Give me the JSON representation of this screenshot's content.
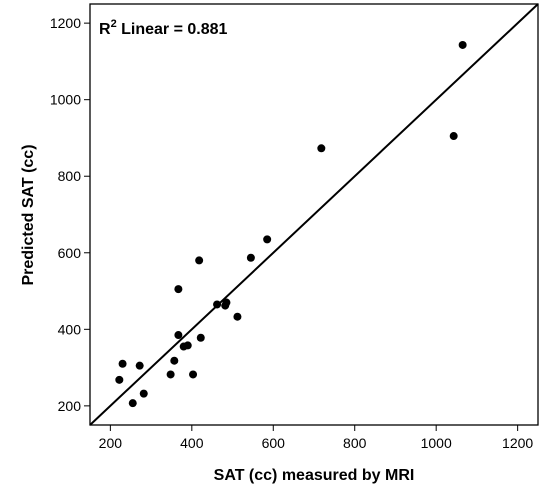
{
  "chart_data": {
    "type": "scatter",
    "title": "",
    "xlabel": "SAT (cc) measured by MRI",
    "ylabel": "Predicted SAT (cc)",
    "xlim": [
      150,
      1250
    ],
    "ylim": [
      150,
      1250
    ],
    "x_ticks": [
      "200",
      "400",
      "600",
      "800",
      "1000",
      "1200"
    ],
    "y_ticks": [
      "200",
      "400",
      "600",
      "800",
      "1000",
      "1200"
    ],
    "grid": false,
    "annotation": {
      "r_symbol": "R",
      "superscript": "2",
      "text": " Linear = 0.881"
    },
    "reference_line": {
      "from": [
        150,
        150
      ],
      "to": [
        1250,
        1250
      ]
    },
    "marker_color": "#000000",
    "points": [
      [
        1065,
        1143
      ],
      [
        1043,
        905
      ],
      [
        718,
        873
      ],
      [
        585,
        635
      ],
      [
        545,
        587
      ],
      [
        418,
        580
      ],
      [
        367,
        505
      ],
      [
        462,
        465
      ],
      [
        485,
        470
      ],
      [
        482,
        462
      ],
      [
        512,
        433
      ],
      [
        367,
        385
      ],
      [
        422,
        378
      ],
      [
        390,
        358
      ],
      [
        380,
        355
      ],
      [
        357,
        318
      ],
      [
        230,
        310
      ],
      [
        272,
        305
      ],
      [
        348,
        282
      ],
      [
        403,
        282
      ],
      [
        222,
        268
      ],
      [
        282,
        232
      ],
      [
        255,
        207
      ]
    ]
  }
}
